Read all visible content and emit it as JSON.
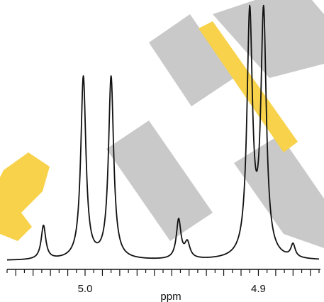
{
  "chart_data": {
    "type": "line",
    "title": "",
    "xlabel": "ppm",
    "ylabel": "",
    "xlim": [
      5.045,
      4.865
    ],
    "ylim": [
      0,
      1.0
    ],
    "x_reversed": true,
    "grid": false,
    "legend": "none",
    "tick_labels": [
      {
        "value": 5.0,
        "label": "5.0"
      },
      {
        "value": 4.9,
        "label": "4.9"
      }
    ],
    "minor_tick_step": 0.01,
    "baseline": 0.02,
    "peaks": [
      {
        "ppm": 5.024,
        "height": 0.13,
        "width": 0.0016
      },
      {
        "ppm": 5.001,
        "height": 0.7,
        "width": 0.0018
      },
      {
        "ppm": 4.985,
        "height": 0.7,
        "width": 0.0018
      },
      {
        "ppm": 4.946,
        "height": 0.15,
        "width": 0.0016
      },
      {
        "ppm": 4.941,
        "height": 0.06,
        "width": 0.0018
      },
      {
        "ppm": 4.905,
        "height": 0.93,
        "width": 0.0019
      },
      {
        "ppm": 4.897,
        "height": 0.93,
        "width": 0.0019
      },
      {
        "ppm": 4.88,
        "height": 0.05,
        "width": 0.0015
      }
    ],
    "series": [
      {
        "color": "#111111"
      }
    ]
  },
  "watermark": {
    "gray": "#c9c9c9",
    "gold": "#f7d24a"
  }
}
